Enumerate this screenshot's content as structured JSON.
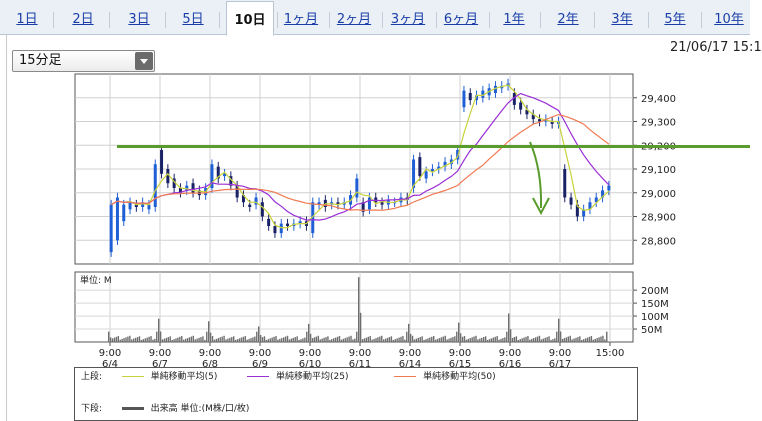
{
  "tabs": [
    {
      "label": "1日",
      "active": false
    },
    {
      "label": "2日",
      "active": false
    },
    {
      "label": "3日",
      "active": false
    },
    {
      "label": "5日",
      "active": false
    },
    {
      "label": "10日",
      "active": true
    },
    {
      "label": "1ヶ月",
      "active": false
    },
    {
      "label": "2ヶ月",
      "active": false
    },
    {
      "label": "3ヶ月",
      "active": false
    },
    {
      "label": "6ヶ月",
      "active": false
    },
    {
      "label": "1年",
      "active": false
    },
    {
      "label": "2年",
      "active": false
    },
    {
      "label": "3年",
      "active": false
    },
    {
      "label": "5年",
      "active": false
    },
    {
      "label": "10年",
      "active": false
    }
  ],
  "interval_select": {
    "value": "15分足",
    "icon": "chevron-down-icon"
  },
  "datetime": "21/06/17 15:1",
  "legend": {
    "upper_label": "上段:",
    "lower_label": "下段:",
    "ma5": "単純移動平均(5)",
    "ma25": "単純移動平均(25)",
    "ma50": "単純移動平均(50)",
    "volume": "出来高 単位:(M株/口/枚)"
  },
  "colors": {
    "candle_up": "#1f5fd6",
    "candle_down": "#1a2266",
    "ma5": "#c8d23a",
    "ma25": "#9b2fd6",
    "ma50": "#f07a52",
    "hline": "#5a9b2d",
    "arrow": "#5a9b2d",
    "volume": "#6e6e6e"
  },
  "chart_data": [
    {
      "type": "line",
      "ylim": [
        28700,
        29500
      ],
      "yticks": [
        "29,400",
        "29,300",
        "29,200",
        "29,100",
        "29,000",
        "28,900",
        "28,800"
      ],
      "y_tick_values": [
        29400,
        29300,
        29200,
        29100,
        29000,
        28900,
        28800
      ],
      "x_tick_labels": [
        {
          "time": "9:00",
          "date": "6/4"
        },
        {
          "time": "9:00",
          "date": "6/7"
        },
        {
          "time": "9:00",
          "date": "6/8"
        },
        {
          "time": "9:00",
          "date": "6/9"
        },
        {
          "time": "9:00",
          "date": "6/10"
        },
        {
          "time": "9:00",
          "date": "6/11"
        },
        {
          "time": "9:00",
          "date": "6/14"
        },
        {
          "time": "9:00",
          "date": "6/15"
        },
        {
          "time": "9:00",
          "date": "6/16"
        },
        {
          "time": "9:00",
          "date": "6/17"
        },
        {
          "time": "15:00",
          "date": ""
        }
      ],
      "price_series": [
        [
          28750,
          28950
        ],
        [
          28800,
          28980
        ],
        [
          28880,
          28950
        ],
        [
          28930,
          28960
        ],
        [
          28950,
          28940
        ],
        [
          28940,
          28960
        ],
        [
          28930,
          28950
        ],
        [
          28940,
          29120
        ],
        [
          29180,
          29080
        ],
        [
          29100,
          29040
        ],
        [
          29060,
          29020
        ],
        [
          29020,
          29000
        ],
        [
          29010,
          29030
        ],
        [
          29040,
          29000
        ],
        [
          29010,
          28990
        ],
        [
          28990,
          29020
        ],
        [
          29020,
          29120
        ],
        [
          29110,
          29060
        ],
        [
          29070,
          29080
        ],
        [
          29070,
          29030
        ],
        [
          29030,
          28980
        ],
        [
          28990,
          28960
        ],
        [
          28950,
          28940
        ],
        [
          28950,
          28980
        ],
        [
          28960,
          28900
        ],
        [
          28890,
          28860
        ],
        [
          28860,
          28830
        ],
        [
          28830,
          28870
        ],
        [
          28870,
          28860
        ],
        [
          28860,
          28870
        ],
        [
          28870,
          28880
        ],
        [
          28880,
          28860
        ],
        [
          28830,
          28960
        ],
        [
          28950,
          28960
        ],
        [
          28970,
          28940
        ],
        [
          28950,
          28960
        ],
        [
          28960,
          28950
        ],
        [
          28950,
          28960
        ],
        [
          28950,
          28990
        ],
        [
          28980,
          29060
        ],
        [
          28960,
          28920
        ],
        [
          28930,
          28980
        ],
        [
          28980,
          28960
        ],
        [
          28960,
          28950
        ],
        [
          28950,
          28970
        ],
        [
          28960,
          28960
        ],
        [
          28960,
          28980
        ],
        [
          28980,
          28970
        ],
        [
          29020,
          29140
        ],
        [
          29150,
          29070
        ],
        [
          29060,
          29090
        ],
        [
          29090,
          29100
        ],
        [
          29100,
          29110
        ],
        [
          29110,
          29130
        ],
        [
          29120,
          29140
        ],
        [
          29140,
          29180
        ],
        [
          29360,
          29430
        ],
        [
          29420,
          29390
        ],
        [
          29390,
          29410
        ],
        [
          29400,
          29430
        ],
        [
          29410,
          29440
        ],
        [
          29420,
          29450
        ],
        [
          29440,
          29450
        ],
        [
          29450,
          29460
        ],
        [
          29420,
          29370
        ],
        [
          29380,
          29350
        ],
        [
          29350,
          29330
        ],
        [
          29330,
          29310
        ],
        [
          29310,
          29300
        ],
        [
          29300,
          29310
        ],
        [
          29300,
          29290
        ],
        [
          29290,
          29300
        ],
        [
          29100,
          28980
        ],
        [
          28980,
          28950
        ],
        [
          28950,
          28900
        ],
        [
          28900,
          28930
        ],
        [
          28930,
          28960
        ],
        [
          28960,
          28980
        ],
        [
          28980,
          29010
        ],
        [
          29010,
          29030
        ]
      ],
      "annotations": {
        "horizontal_line": 29195,
        "arrow": "down"
      }
    },
    {
      "type": "bar",
      "ylabel": "単位: M",
      "ylim": [
        0,
        270
      ],
      "yticks": [
        "200M",
        "150M",
        "100M",
        "50M"
      ],
      "y_tick_values": [
        200,
        150,
        100,
        50
      ],
      "day_peaks": [
        40,
        90,
        80,
        60,
        70,
        250,
        70,
        75,
        110,
        90
      ]
    }
  ]
}
